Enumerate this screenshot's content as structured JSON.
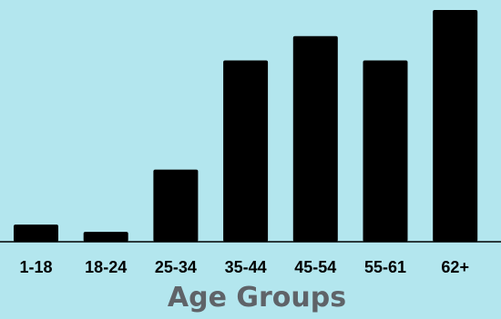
{
  "chart_data": {
    "type": "bar",
    "title": "",
    "xlabel": "Age Groups",
    "ylabel": "",
    "categories": [
      "1-18",
      "18-24",
      "25-34",
      "35-44",
      "45-54",
      "55-61",
      "62+"
    ],
    "values": [
      19,
      11,
      80,
      201,
      228,
      201,
      257
    ],
    "ylim": [
      0,
      260
    ],
    "grid": false,
    "legend": "none",
    "colors": {
      "background": "#b3e6ee",
      "bar": "#000000",
      "axis_line": "#000000",
      "tick_label": "#000000",
      "axis_title": "#5f6368"
    }
  }
}
